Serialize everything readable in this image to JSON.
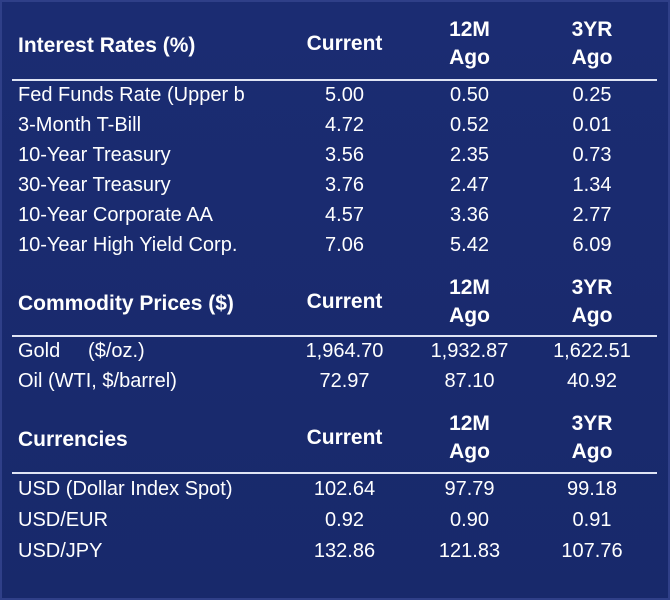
{
  "interest_rates": {
    "title": "Interest Rates (%)",
    "col_current": "Current",
    "col_12m_top": "12M",
    "col_12m_bottom": "Ago",
    "col_3yr_top": "3YR",
    "col_3yr_bottom": "Ago",
    "rows": [
      {
        "label": "Fed Funds Rate (Upper b",
        "current": "5.00",
        "m12": "0.50",
        "yr3": "0.25"
      },
      {
        "label": "3-Month T-Bill",
        "current": "4.72",
        "m12": "0.52",
        "yr3": "0.01"
      },
      {
        "label": "10-Year Treasury",
        "current": "3.56",
        "m12": "2.35",
        "yr3": "0.73"
      },
      {
        "label": "30-Year Treasury",
        "current": "3.76",
        "m12": "2.47",
        "yr3": "1.34"
      },
      {
        "label": "10-Year Corporate AA",
        "current": "4.57",
        "m12": "3.36",
        "yr3": "2.77"
      },
      {
        "label": "10-Year High Yield Corp.",
        "current": "7.06",
        "m12": "5.42",
        "yr3": "6.09"
      }
    ]
  },
  "commodities": {
    "title": "Commodity Prices ($)",
    "col_current": "Current",
    "col_12m_top": "12M",
    "col_12m_bottom": "Ago",
    "col_3yr_top": "3YR",
    "col_3yr_bottom": "Ago",
    "rows": [
      {
        "label": "Gold     ($/oz.)",
        "current": "1,964.70",
        "m12": "1,932.87",
        "yr3": "1,622.51"
      },
      {
        "label": "Oil (WTI, $/barrel)",
        "current": "72.97",
        "m12": "87.10",
        "yr3": "40.92"
      }
    ]
  },
  "currencies": {
    "title": "Currencies",
    "col_current": "Current",
    "col_12m_top": "12M",
    "col_12m_bottom": "Ago",
    "col_3yr_top": "3YR",
    "col_3yr_bottom": "Ago",
    "rows": [
      {
        "label": "USD (Dollar Index Spot)",
        "current": "102.64",
        "m12": "97.79",
        "yr3": "99.18"
      },
      {
        "label": "USD/EUR",
        "current": "0.92",
        "m12": "0.90",
        "yr3": "0.91"
      },
      {
        "label": "USD/JPY",
        "current": "132.86",
        "m12": "121.83",
        "yr3": "107.76"
      }
    ]
  }
}
